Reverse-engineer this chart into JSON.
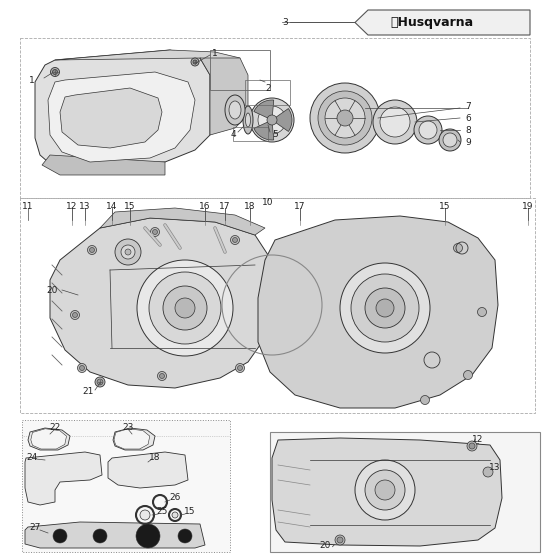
{
  "bg_color": "#ffffff",
  "fig_width": 5.6,
  "fig_height": 5.6,
  "dpi": 100,
  "line_color": "#333333",
  "light_gray": "#d0d0d0",
  "mid_gray": "#b0b0b0",
  "dark_gray": "#606060",
  "label_fontsize": 6.5,
  "logo_text": "Husqvarna",
  "logo_bg": "#1a1a1a",
  "logo_text_color": "#ffffff"
}
